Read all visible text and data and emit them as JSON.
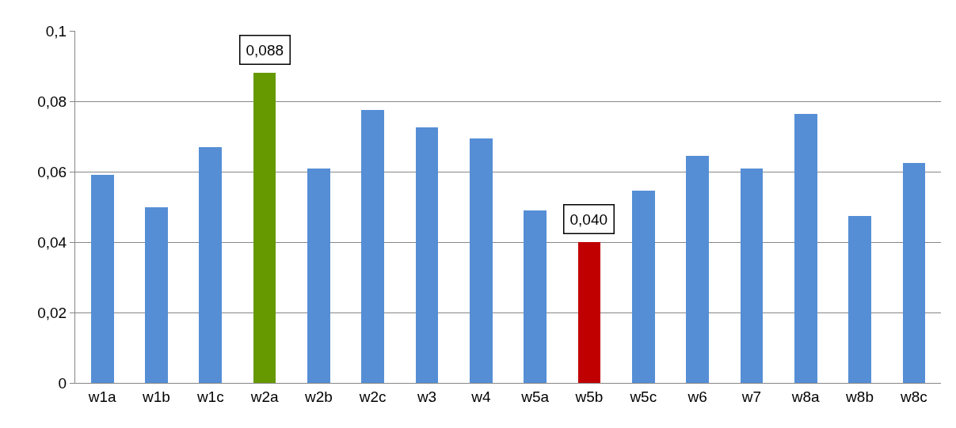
{
  "chart_data": {
    "type": "bar",
    "categories": [
      "w1a",
      "w1b",
      "w1c",
      "w2a",
      "w2b",
      "w2c",
      "w3",
      "w4",
      "w5a",
      "w5b",
      "w5c",
      "w6",
      "w7",
      "w8a",
      "w8b",
      "w8c"
    ],
    "values": [
      0.059,
      0.05,
      0.067,
      0.088,
      0.061,
      0.0775,
      0.0725,
      0.0695,
      0.049,
      0.04,
      0.0545,
      0.0645,
      0.061,
      0.0765,
      0.0475,
      0.0625
    ],
    "colors": [
      "#558ed5",
      "#558ed5",
      "#558ed5",
      "#669900",
      "#558ed5",
      "#558ed5",
      "#558ed5",
      "#558ed5",
      "#558ed5",
      "#c00000",
      "#558ed5",
      "#558ed5",
      "#558ed5",
      "#558ed5",
      "#558ed5",
      "#558ed5"
    ],
    "value_labels": [
      null,
      null,
      null,
      "0,088",
      null,
      null,
      null,
      null,
      null,
      "0,040",
      null,
      null,
      null,
      null,
      null,
      null
    ],
    "ylim": [
      0,
      0.1
    ],
    "yticks": [
      {
        "value": 0,
        "label": "0"
      },
      {
        "value": 0.02,
        "label": "0,02"
      },
      {
        "value": 0.04,
        "label": "0,04"
      },
      {
        "value": 0.06,
        "label": "0,06"
      },
      {
        "value": 0.08,
        "label": "0,08"
      },
      {
        "value": 0.1,
        "label": "0,1"
      }
    ],
    "grid": "y"
  }
}
